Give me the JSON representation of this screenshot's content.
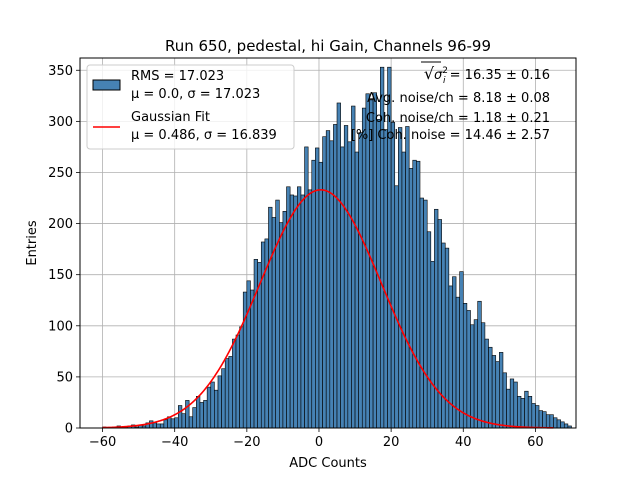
{
  "chart_data": {
    "type": "bar",
    "title": "Run 650, pedestal, hi Gain, Channels 96-99",
    "xlabel": "ADC Counts",
    "ylabel": "Entries",
    "xlim": [
      -66.25,
      71.25
    ],
    "ylim": [
      0,
      362
    ],
    "xticks": [
      -60,
      -40,
      -20,
      0,
      20,
      40,
      60
    ],
    "yticks": [
      0,
      50,
      100,
      150,
      200,
      250,
      300,
      350
    ],
    "xtick_labels": [
      "−60",
      "−40",
      "−20",
      "0",
      "20",
      "40",
      "60"
    ],
    "ytick_labels": [
      "0",
      "50",
      "100",
      "150",
      "200",
      "250",
      "300",
      "350"
    ],
    "grid": true,
    "bin_width": 1,
    "bin_start": -60,
    "values": [
      1,
      0,
      0,
      1,
      2,
      0,
      1,
      2,
      3,
      1,
      3,
      2,
      5,
      7,
      5,
      4,
      4,
      8,
      11,
      9,
      10,
      22,
      14,
      27,
      11,
      20,
      31,
      25,
      27,
      40,
      45,
      37,
      51,
      58,
      68,
      70,
      87,
      91,
      99,
      133,
      144,
      135,
      165,
      162,
      182,
      185,
      216,
      206,
      223,
      201,
      212,
      236,
      228,
      227,
      236,
      228,
      275,
      233,
      262,
      274,
      260,
      285,
      291,
      281,
      297,
      318,
      275,
      296,
      280,
      315,
      270,
      289,
      313,
      327,
      321,
      328,
      302,
      353,
      292,
      353,
      299,
      237,
      294,
      270,
      295,
      254,
      262,
      261,
      225,
      223,
      192,
      163,
      214,
      204,
      181,
      176,
      139,
      148,
      128,
      153,
      122,
      115,
      101,
      106,
      124,
      103,
      87,
      79,
      71,
      65,
      74,
      54,
      38,
      48,
      45,
      31,
      29,
      36,
      31,
      24,
      22,
      17,
      16,
      13,
      13,
      10,
      8,
      6,
      4,
      2
    ],
    "bar_color": "#4682b4",
    "fit_color": "#ff0000",
    "fit": {
      "amplitude": 233,
      "mean": 0.486,
      "sigma": 16.839,
      "x_range": [
        -60,
        65
      ]
    },
    "series": [
      {
        "name": "RMS = 17.023",
        "name_line2": "μ = 0.0, σ = 17.023",
        "type": "histogram"
      },
      {
        "name": "Gaussian Fit",
        "name_line2": "μ = 0.486, σ = 16.839",
        "type": "line"
      }
    ],
    "legend_position": "top-left",
    "annotations": [
      {
        "prefix": "√",
        "radicand": "σ",
        "radicand_sup": "2",
        "radicand_sub": "i",
        "text": " = 16.35 ± 0.16"
      },
      {
        "text": "Avg. noise/ch = 8.18 ± 0.08"
      },
      {
        "text": "Coh. noise/ch = 1.18 ± 0.21"
      },
      {
        "text": "[%] Coh. noise = 14.46 ± 2.57"
      }
    ]
  }
}
